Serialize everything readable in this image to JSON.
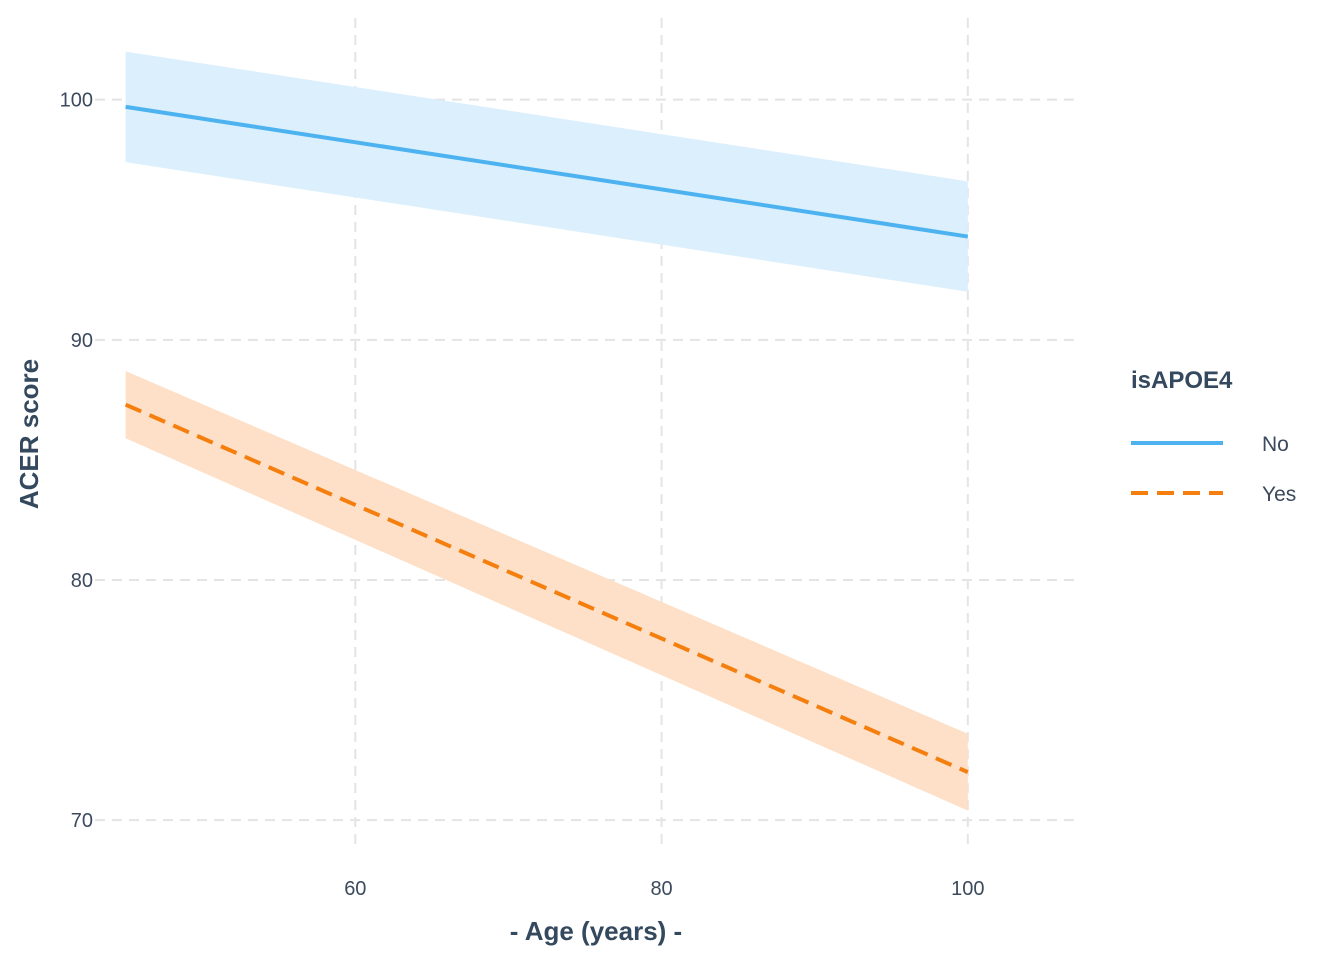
{
  "chart_data": {
    "type": "line",
    "xlabel": "- Age (years) -",
    "ylabel": "ACER score",
    "xlim": [
      43,
      107
    ],
    "ylim": [
      68.8,
      103.4
    ],
    "x_ticks": [
      60,
      80,
      100
    ],
    "y_ticks": [
      70,
      80,
      90,
      100
    ],
    "grid": true,
    "legend": {
      "title": "isAPOE4",
      "placement": "right"
    },
    "series": [
      {
        "name": "No",
        "color": "#4db3f0",
        "band_color": "#dbeffc",
        "line_style": "solid",
        "x": [
          45,
          100
        ],
        "y": [
          99.7,
          94.3
        ],
        "lower": [
          97.4,
          92.0
        ],
        "upper": [
          102.0,
          96.6
        ]
      },
      {
        "name": "Yes",
        "color": "#f57f0e",
        "band_color": "#fde0c7",
        "line_style": "dashed",
        "x": [
          45,
          100
        ],
        "y": [
          87.3,
          72.0
        ],
        "lower": [
          85.9,
          70.4
        ],
        "upper": [
          88.7,
          73.6
        ]
      }
    ]
  }
}
